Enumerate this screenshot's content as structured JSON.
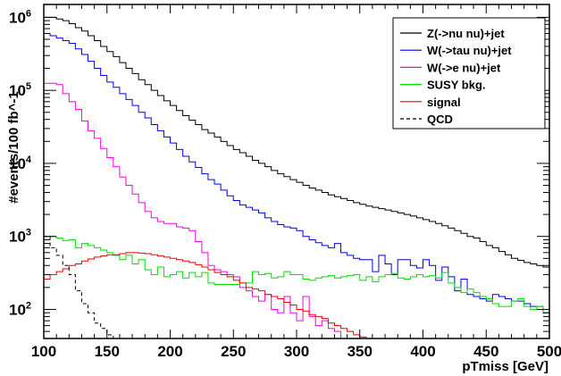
{
  "chart_data": {
    "type": "line",
    "style": "step-histogram",
    "title": "",
    "xlabel": "pTmiss [GeV]",
    "ylabel": "#events/100 fb^-1",
    "xlim": [
      100,
      500
    ],
    "ylim": [
      40,
      1500000
    ],
    "yscale": "log",
    "bin_width": 5,
    "x_bin_starts_first": 100,
    "x_ticks": [
      100,
      150,
      200,
      250,
      300,
      350,
      400,
      450,
      500
    ],
    "x_tick_labels": [
      "100",
      "150",
      "200",
      "250",
      "300",
      "350",
      "400",
      "450",
      "500"
    ],
    "y_ticks": [
      {
        "value": 100,
        "base": "10",
        "exp": "2"
      },
      {
        "value": 1000,
        "base": "10",
        "exp": "3"
      },
      {
        "value": 10000,
        "base": "10",
        "exp": "4"
      },
      {
        "value": 100000,
        "base": "10",
        "exp": "5"
      },
      {
        "value": 1000000,
        "base": "10",
        "exp": "6"
      }
    ],
    "legend_position": "top-right",
    "series": [
      {
        "name": "Z(->nu nu)+jet",
        "color": "#000000",
        "dash": "",
        "values": [
          1000000,
          1000000,
          950000,
          900000,
          820000,
          720000,
          650000,
          560000,
          480000,
          400000,
          340000,
          290000,
          240000,
          200000,
          170000,
          140000,
          120000,
          100000,
          85000,
          72000,
          62000,
          53000,
          45000,
          39000,
          34000,
          29000,
          26000,
          23000,
          20000,
          17500,
          15500,
          14000,
          12500,
          11000,
          10000,
          9000,
          8000,
          7200,
          6600,
          6000,
          5500,
          5000,
          4600,
          4300,
          4000,
          3700,
          3500,
          3300,
          3100,
          2900,
          2750,
          2600,
          2500,
          2400,
          2300,
          2200,
          2100,
          2000,
          1900,
          1800,
          1700,
          1600,
          1500,
          1400,
          1300,
          1200,
          1100,
          1000,
          950,
          850,
          750,
          700,
          620,
          560,
          500,
          470,
          440,
          420,
          400,
          380
        ]
      },
      {
        "name": "W(->tau nu)+jet",
        "color": "#0000ee",
        "dash": "",
        "values": [
          600000,
          560000,
          520000,
          480000,
          440000,
          370000,
          310000,
          250000,
          200000,
          160000,
          130000,
          110000,
          90000,
          75000,
          62000,
          50000,
          42000,
          34000,
          28000,
          23000,
          19000,
          15500,
          12500,
          10500,
          8800,
          7200,
          6000,
          5200,
          4300,
          3600,
          3100,
          2700,
          2500,
          2300,
          2100,
          1800,
          1600,
          1450,
          1350,
          1300,
          1200,
          1000,
          900,
          820,
          750,
          700,
          800,
          600,
          550,
          500,
          480,
          480,
          330,
          550,
          420,
          300,
          480,
          480,
          400,
          370,
          480,
          400,
          250,
          380,
          280,
          180,
          260,
          160,
          150,
          140,
          130,
          160,
          150,
          140,
          130,
          130,
          120,
          110,
          110,
          90
        ]
      },
      {
        "name": "W(->e nu)+jet",
        "color": "#ee00ee",
        "dash": "",
        "values": [
          125000,
          125000,
          120000,
          90000,
          70000,
          55000,
          38000,
          28000,
          22000,
          16000,
          12000,
          9000,
          6500,
          5000,
          3800,
          2900,
          2200,
          1800,
          1600,
          1500,
          1500,
          1350,
          1300,
          1200,
          850,
          600,
          400,
          350,
          330,
          300,
          280,
          200,
          180,
          150,
          130,
          160,
          100,
          90,
          150,
          90,
          70,
          150,
          80,
          60,
          70,
          55,
          50,
          40,
          40,
          40,
          40,
          40,
          40,
          40,
          40,
          40,
          40,
          40,
          40,
          40,
          40,
          40,
          40,
          40,
          40,
          40,
          40,
          40,
          40,
          40,
          40,
          40,
          40,
          40,
          40,
          40,
          40,
          40,
          40,
          40
        ]
      },
      {
        "name": "SUSY bkg.",
        "color": "#00dd00",
        "dash": "",
        "values": [
          1000,
          1000,
          950,
          880,
          900,
          700,
          800,
          750,
          700,
          650,
          600,
          550,
          480,
          550,
          420,
          480,
          350,
          300,
          380,
          280,
          300,
          330,
          270,
          320,
          280,
          320,
          230,
          220,
          220,
          220,
          220,
          230,
          230,
          330,
          300,
          310,
          270,
          280,
          330,
          300,
          300,
          260,
          250,
          270,
          280,
          290,
          270,
          280,
          290,
          300,
          250,
          280,
          240,
          280,
          300,
          310,
          270,
          260,
          280,
          300,
          280,
          290,
          270,
          320,
          230,
          200,
          170,
          190,
          170,
          150,
          140,
          120,
          110,
          110,
          130,
          140,
          110,
          100,
          110,
          90
        ]
      },
      {
        "name": "signal",
        "color": "#ee0000",
        "dash": "",
        "values": [
          260,
          300,
          330,
          360,
          400,
          420,
          460,
          490,
          520,
          540,
          560,
          560,
          580,
          600,
          600,
          590,
          580,
          560,
          540,
          520,
          500,
          480,
          460,
          440,
          410,
          380,
          350,
          320,
          300,
          280,
          250,
          230,
          200,
          190,
          180,
          160,
          150,
          140,
          125,
          115,
          100,
          95,
          85,
          80,
          75,
          65,
          60,
          55,
          50,
          45,
          42,
          40,
          40,
          40,
          40,
          40,
          40,
          40,
          40,
          40,
          40,
          40,
          40,
          40,
          40,
          40,
          40,
          40,
          40,
          40,
          40,
          40,
          40,
          40,
          40,
          40,
          40,
          40,
          40,
          40
        ]
      },
      {
        "name": "QCD",
        "color": "#000000",
        "dash": "4,3",
        "values": [
          1000,
          700,
          550,
          400,
          300,
          180,
          120,
          90,
          65,
          55,
          45,
          40,
          40,
          40,
          40,
          40,
          40,
          40,
          40,
          40,
          40,
          40,
          40,
          40,
          40,
          40,
          40,
          40,
          40,
          40,
          40,
          40,
          40,
          40,
          40,
          40,
          40,
          40,
          40,
          40,
          40,
          40,
          40,
          40,
          40,
          40,
          40,
          40,
          40,
          40,
          40,
          40,
          40,
          40,
          40,
          40,
          40,
          40,
          40,
          40,
          40,
          40,
          40,
          40,
          40,
          40,
          40,
          40,
          40,
          40,
          40,
          40,
          40,
          40,
          40,
          40,
          40,
          40,
          40,
          40
        ]
      }
    ]
  }
}
